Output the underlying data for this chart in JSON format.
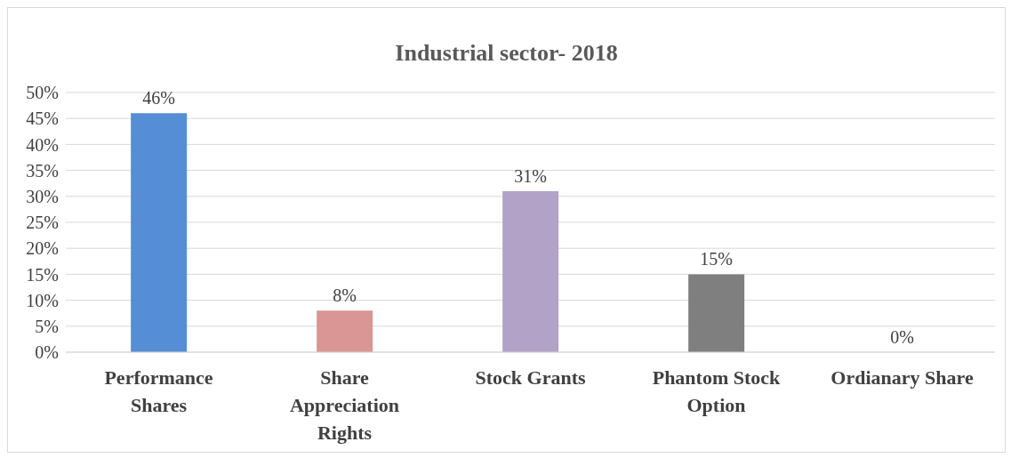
{
  "chart_data": {
    "type": "bar",
    "title": "Industrial sector- 2018",
    "categories": [
      "Performance Shares",
      "Share Appreciation Rights",
      "Stock Grants",
      "Phantom Stock Option",
      "Ordianary Share"
    ],
    "values": [
      46,
      8,
      31,
      15,
      0
    ],
    "colors": [
      "#558ed5",
      "#d99694",
      "#b2a2c7",
      "#7f7f7f",
      "#4bacc6"
    ],
    "value_labels": [
      "46%",
      "8%",
      "31%",
      "15%",
      "0%"
    ],
    "ylim": [
      0,
      50
    ],
    "yticks": [
      {
        "value": 0,
        "label": "0%"
      },
      {
        "value": 5,
        "label": "5%"
      },
      {
        "value": 10,
        "label": "10%"
      },
      {
        "value": 15,
        "label": "15%"
      },
      {
        "value": 20,
        "label": "20%"
      },
      {
        "value": 25,
        "label": "25%"
      },
      {
        "value": 30,
        "label": "30%"
      },
      {
        "value": 35,
        "label": "35%"
      },
      {
        "value": 40,
        "label": "40%"
      },
      {
        "value": 45,
        "label": "45%"
      },
      {
        "value": 50,
        "label": "50%"
      }
    ],
    "grid": "y"
  }
}
